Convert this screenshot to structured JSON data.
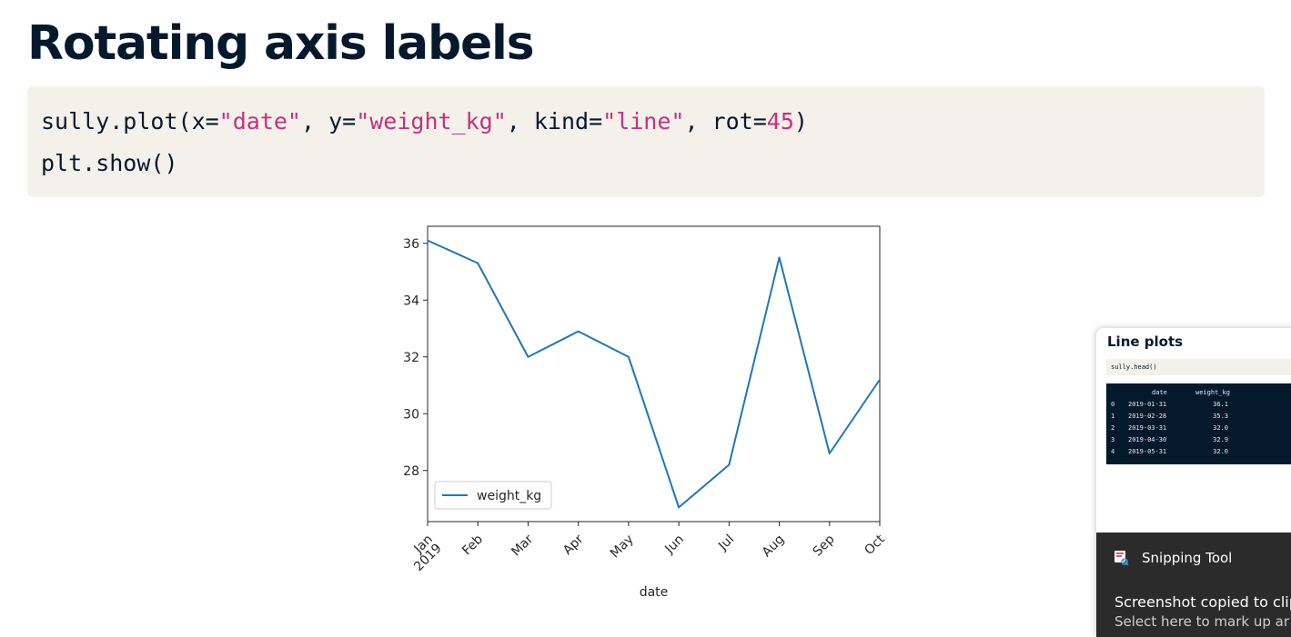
{
  "slide": {
    "title": "Rotating axis labels",
    "code_lines": [
      [
        {
          "t": "sully.plot(x=",
          "k": "plain"
        },
        {
          "t": "\"date\"",
          "k": "str"
        },
        {
          "t": ", y=",
          "k": "plain"
        },
        {
          "t": "\"weight_kg\"",
          "k": "str"
        },
        {
          "t": ", kind=",
          "k": "plain"
        },
        {
          "t": "\"line\"",
          "k": "str"
        },
        {
          "t": ", rot=",
          "k": "plain"
        },
        {
          "t": "45",
          "k": "num"
        },
        {
          "t": ")",
          "k": "plain"
        }
      ],
      [
        {
          "t": "plt.show()",
          "k": "plain"
        }
      ]
    ]
  },
  "chart_data": {
    "type": "line",
    "x": [
      "Jan\n2019",
      "Feb",
      "Mar",
      "Apr",
      "May",
      "Jun",
      "Jul",
      "Aug",
      "Sep",
      "Oct"
    ],
    "series": [
      {
        "name": "weight_kg",
        "values": [
          36.1,
          35.3,
          32.0,
          32.9,
          32.0,
          26.7,
          28.2,
          35.5,
          28.6,
          31.2
        ],
        "color": "#1f77b4"
      }
    ],
    "xlabel": "date",
    "ylabel": "",
    "ylim": [
      26.2,
      36.6
    ],
    "yticks": [
      28,
      30,
      32,
      34,
      36
    ],
    "tick_rotation_deg": 45,
    "legend": "lower-left",
    "grid": false
  },
  "snipping_popup": {
    "thumbnail": {
      "title": "Line plots",
      "code": "sully.head()",
      "table_header": [
        "",
        "date",
        "weight_kg"
      ],
      "table_rows": [
        [
          "0",
          "2019-01-31",
          "36.1"
        ],
        [
          "1",
          "2019-02-28",
          "35.3"
        ],
        [
          "2",
          "2019-03-31",
          "32.0"
        ],
        [
          "3",
          "2019-04-30",
          "32.9"
        ],
        [
          "4",
          "2019-05-31",
          "32.0"
        ]
      ]
    },
    "toast": {
      "app_name": "Snipping Tool",
      "app_icon": "snipping-tool-icon",
      "heading": "Screenshot copied to clip",
      "subtext": "Select here to mark up ar"
    }
  }
}
